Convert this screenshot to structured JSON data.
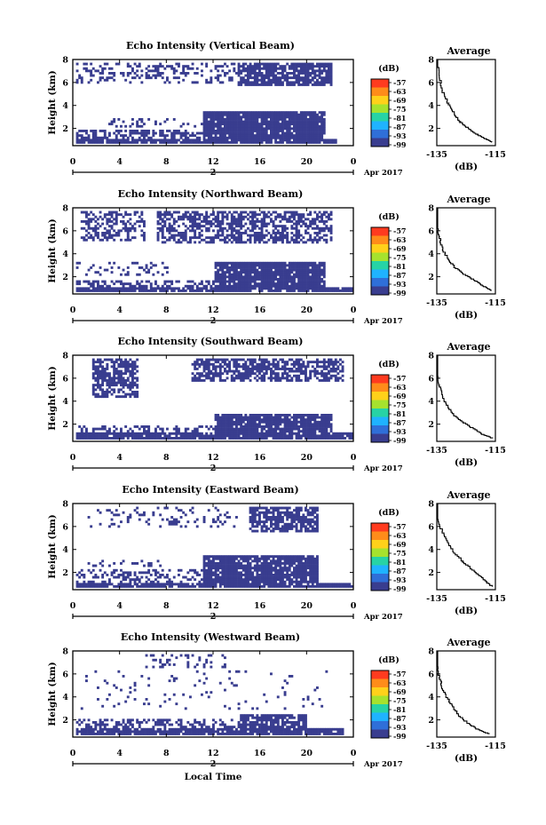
{
  "figure": {
    "xlabel_shared": "Local Time",
    "date_label": "Apr 2017",
    "colorbar_unit": "(dB)",
    "colorbar_ticks": [
      "-57",
      "-63",
      "-69",
      "-75",
      "-81",
      "-87",
      "-93",
      "-99"
    ],
    "colorbar_colors": [
      "#ff3b1f",
      "#ff8c1a",
      "#ffd11a",
      "#a6e22e",
      "#27d3a5",
      "#1fb3ff",
      "#2f6fd8",
      "#393d8f"
    ],
    "fill_color": "#393d8f",
    "heatmap_x_ticks": [
      "0",
      "4",
      "8",
      "12",
      "16",
      "20",
      "0"
    ],
    "heatmap_day_tick": "2",
    "heatmap_y_ticks": [
      "8",
      "6",
      "4",
      "2"
    ],
    "avg_title": "Average",
    "avg_y_ticks": [
      "8",
      "6",
      "4",
      "2"
    ],
    "avg_x_ticks": [
      "-135",
      "-115"
    ],
    "avg_xlabel": "(dB)"
  },
  "chart_data": [
    {
      "type": "heatmap",
      "title": "Echo Intensity (Vertical Beam)",
      "ylabel": "Height (km)",
      "x_unit": "local time (h)",
      "xlim": [
        0,
        24
      ],
      "ylim": [
        0.5,
        8
      ],
      "coverage_regions": [
        {
          "t": [
            0.2,
            22.5
          ],
          "h": [
            0.7,
            1.2
          ],
          "density": 0.9
        },
        {
          "t": [
            0.2,
            14
          ],
          "h": [
            1.2,
            2.0
          ],
          "density": 0.55
        },
        {
          "t": [
            11,
            21.5
          ],
          "h": [
            1.2,
            3.7
          ],
          "density": 0.95
        },
        {
          "t": [
            3,
            11
          ],
          "h": [
            2.2,
            2.9
          ],
          "density": 0.25
        },
        {
          "t": [
            0.2,
            22
          ],
          "h": [
            6.0,
            7.8
          ],
          "density": 0.3
        },
        {
          "t": [
            14,
            22
          ],
          "h": [
            5.8,
            7.8
          ],
          "density": 0.8
        }
      ],
      "average_profile": {
        "xlim": [
          -135,
          -115
        ],
        "ylim": [
          0.5,
          8
        ],
        "x": [
          -135,
          -134,
          -133,
          -131,
          -129,
          -127,
          -124,
          -121,
          -118,
          -116
        ],
        "y": [
          8,
          6.6,
          5.3,
          4.2,
          3.3,
          2.6,
          2.0,
          1.5,
          1.1,
          0.8
        ]
      }
    },
    {
      "type": "heatmap",
      "title": "Echo Intensity (Northward Beam)",
      "ylabel": "Height (km)",
      "x_unit": "local time (h)",
      "xlim": [
        0,
        24
      ],
      "ylim": [
        0.5,
        8
      ],
      "coverage_regions": [
        {
          "t": [
            0.2,
            24
          ],
          "h": [
            0.7,
            1.2
          ],
          "density": 0.9
        },
        {
          "t": [
            0.2,
            12
          ],
          "h": [
            1.2,
            1.8
          ],
          "density": 0.45
        },
        {
          "t": [
            12,
            21.5
          ],
          "h": [
            1.2,
            3.3
          ],
          "density": 0.9
        },
        {
          "t": [
            0.2,
            8
          ],
          "h": [
            2.2,
            3.3
          ],
          "density": 0.2
        },
        {
          "t": [
            0.5,
            6
          ],
          "h": [
            5.2,
            7.8
          ],
          "density": 0.45
        },
        {
          "t": [
            7,
            22
          ],
          "h": [
            5.0,
            7.8
          ],
          "density": 0.6
        }
      ],
      "average_profile": {
        "xlim": [
          -135,
          -115
        ],
        "ylim": [
          0.5,
          8
        ],
        "x": [
          -136,
          -135,
          -134,
          -133,
          -131,
          -129,
          -126,
          -122,
          -119,
          -116
        ],
        "y": [
          8,
          6.5,
          5.5,
          4.4,
          3.6,
          2.9,
          2.3,
          1.7,
          1.2,
          0.8
        ]
      }
    },
    {
      "type": "heatmap",
      "title": "Echo Intensity (Southward Beam)",
      "ylabel": "Height (km)",
      "x_unit": "local time (h)",
      "xlim": [
        0,
        24
      ],
      "ylim": [
        0.5,
        8
      ],
      "coverage_regions": [
        {
          "t": [
            0.2,
            24
          ],
          "h": [
            0.7,
            1.3
          ],
          "density": 0.9
        },
        {
          "t": [
            0.2,
            12
          ],
          "h": [
            1.3,
            1.9
          ],
          "density": 0.35
        },
        {
          "t": [
            12,
            22
          ],
          "h": [
            1.3,
            3.0
          ],
          "density": 0.9
        },
        {
          "t": [
            1.5,
            5.5
          ],
          "h": [
            4.4,
            7.8
          ],
          "density": 0.65
        },
        {
          "t": [
            10,
            23
          ],
          "h": [
            5.8,
            7.8
          ],
          "density": 0.65
        }
      ],
      "average_profile": {
        "xlim": [
          -135,
          -115
        ],
        "ylim": [
          0.5,
          8
        ],
        "x": [
          -136,
          -135,
          -134,
          -133,
          -131,
          -129,
          -126,
          -122,
          -119,
          -116
        ],
        "y": [
          8,
          6.5,
          5.4,
          4.4,
          3.5,
          2.8,
          2.2,
          1.6,
          1.1,
          0.8
        ]
      }
    },
    {
      "type": "heatmap",
      "title": "Echo Intensity (Eastward Beam)",
      "ylabel": "Height (km)",
      "x_unit": "local time (h)",
      "xlim": [
        0,
        24
      ],
      "ylim": [
        0.5,
        8
      ],
      "coverage_regions": [
        {
          "t": [
            0.2,
            24
          ],
          "h": [
            0.7,
            1.2
          ],
          "density": 0.9
        },
        {
          "t": [
            0.2,
            12
          ],
          "h": [
            1.2,
            2.4
          ],
          "density": 0.4
        },
        {
          "t": [
            11,
            21
          ],
          "h": [
            1.2,
            3.5
          ],
          "density": 0.9
        },
        {
          "t": [
            0.5,
            8
          ],
          "h": [
            2.6,
            3.2
          ],
          "density": 0.2
        },
        {
          "t": [
            15,
            21
          ],
          "h": [
            5.6,
            7.8
          ],
          "density": 0.75
        },
        {
          "t": [
            1,
            14
          ],
          "h": [
            6.0,
            7.8
          ],
          "density": 0.15
        }
      ],
      "average_profile": {
        "xlim": [
          -135,
          -115
        ],
        "ylim": [
          0.5,
          8
        ],
        "x": [
          -136,
          -135,
          -133,
          -131,
          -129,
          -126,
          -123,
          -120,
          -118,
          -116
        ],
        "y": [
          8,
          6.8,
          5.6,
          4.6,
          3.8,
          3.0,
          2.3,
          1.7,
          1.2,
          0.8
        ]
      }
    },
    {
      "type": "heatmap",
      "title": "Echo Intensity (Westward Beam)",
      "ylabel": "Height (km)",
      "x_unit": "local time (h)",
      "xlim": [
        0,
        24
      ],
      "ylim": [
        0.5,
        8
      ],
      "coverage_regions": [
        {
          "t": [
            0.2,
            23
          ],
          "h": [
            0.7,
            1.3
          ],
          "density": 0.9
        },
        {
          "t": [
            0.2,
            15
          ],
          "h": [
            1.3,
            2.2
          ],
          "density": 0.4
        },
        {
          "t": [
            14,
            20
          ],
          "h": [
            1.3,
            2.6
          ],
          "density": 0.8
        },
        {
          "t": [
            6,
            13
          ],
          "h": [
            6.6,
            7.8
          ],
          "density": 0.25
        },
        {
          "t": [
            0.5,
            22
          ],
          "h": [
            3.0,
            6.5
          ],
          "density": 0.05
        }
      ],
      "average_profile": {
        "xlim": [
          -135,
          -115
        ],
        "ylim": [
          0.5,
          8
        ],
        "x": [
          -136,
          -135,
          -134,
          -133,
          -131,
          -129,
          -127,
          -124,
          -121,
          -117
        ],
        "y": [
          8,
          6.8,
          5.7,
          4.7,
          3.8,
          3.0,
          2.3,
          1.7,
          1.2,
          0.8
        ]
      }
    }
  ]
}
